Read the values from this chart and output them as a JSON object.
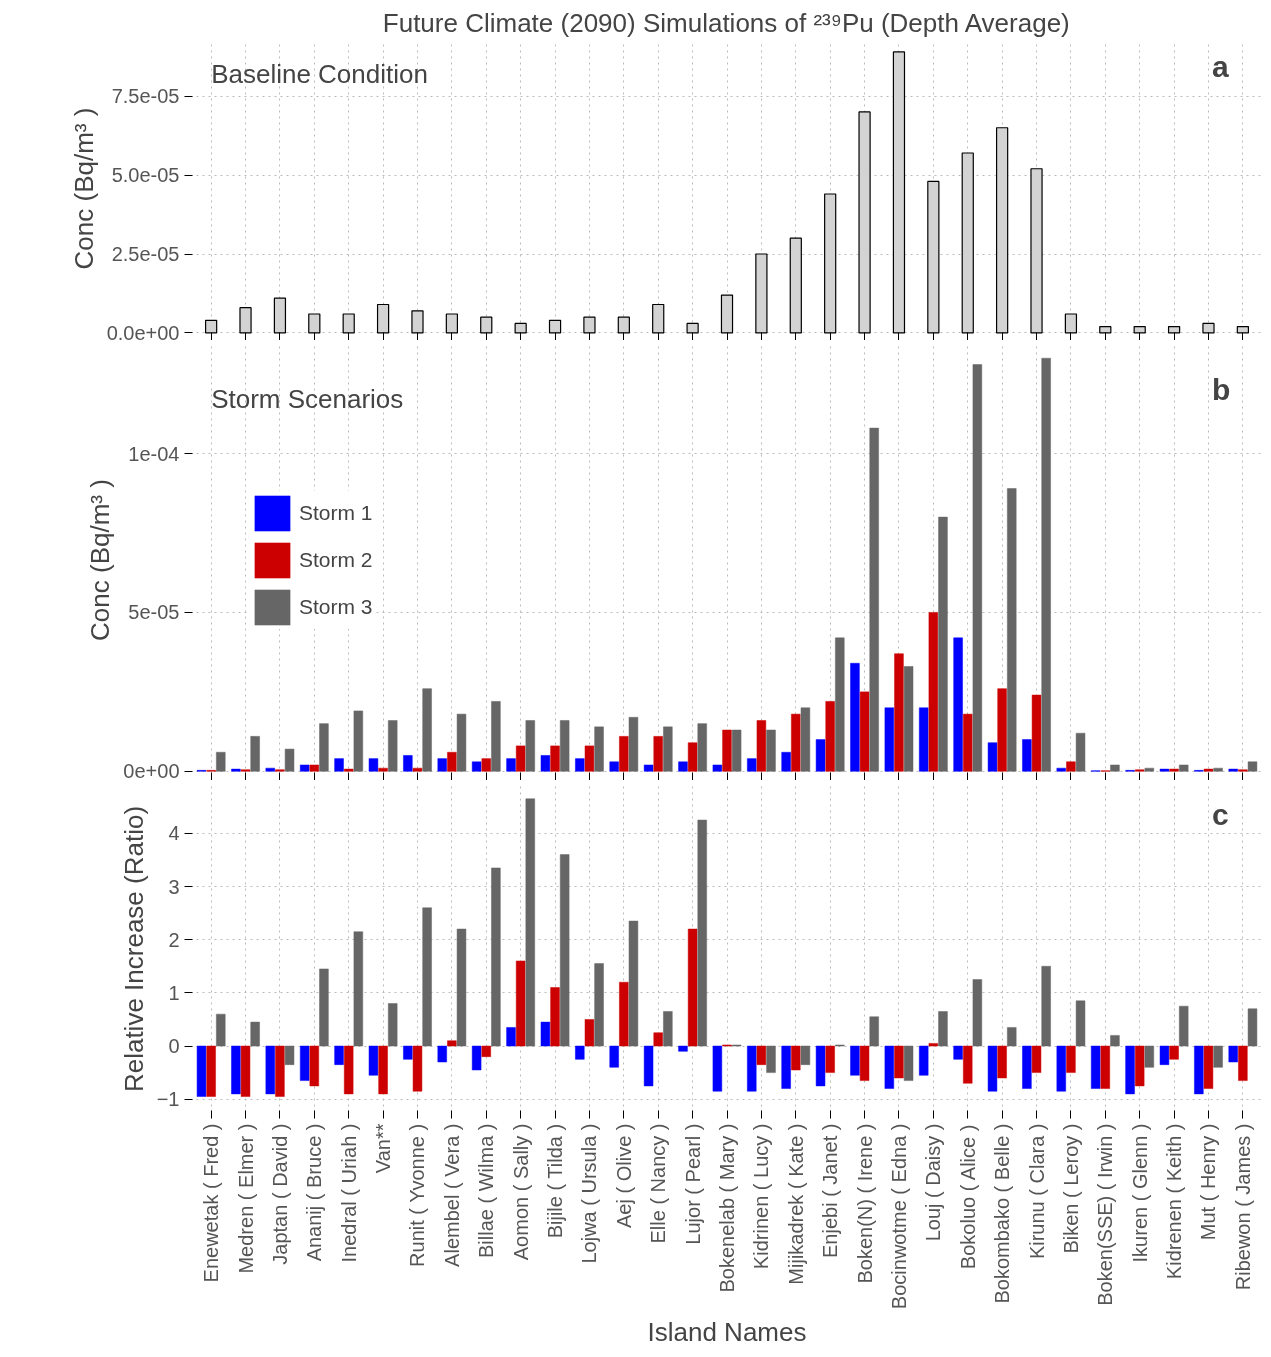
{
  "chart_data": [
    {
      "type": "bar",
      "title": "Future Climate (2090) Simulations of ²³⁹Pu (Depth Average)",
      "ylabel": "Conc (Bq/m³ )",
      "categories": [
        null,
        null,
        null,
        null,
        null,
        null,
        null,
        null,
        null,
        null,
        null,
        null,
        null,
        null,
        null,
        null,
        null,
        null,
        null,
        null,
        null,
        null,
        null,
        null,
        null,
        null,
        null,
        null,
        null,
        null,
        null
      ],
      "series": [
        {
          "color": "#d3d3d3",
          "values": [
            4e-06,
            8e-06,
            1.1e-05,
            6e-06,
            6e-06,
            9e-06,
            7e-06,
            6e-06,
            5e-06,
            3e-06,
            4e-06,
            5e-06,
            5e-06,
            9e-06,
            3e-06,
            1.2e-05,
            2.5e-05,
            3e-05,
            4.4e-05,
            7e-05,
            8.9e-05,
            4.8e-05,
            5.7e-05,
            6.5e-05,
            5.2e-05,
            6e-06,
            2e-06,
            2e-06,
            2e-06,
            3e-06,
            2e-06
          ]
        }
      ],
      "ylim": [
        -5e-07,
        9.2e-05
      ],
      "yticks": [
        {
          "value": 0,
          "label": "0.0e+00"
        },
        {
          "value": 2.5e-05,
          "label": "2.5e-05"
        },
        {
          "value": 5e-05,
          "label": "5.0e-05"
        },
        {
          "value": 7.5e-05,
          "label": "7.5e-05"
        }
      ],
      "grid": true,
      "tick_labels": "y",
      "annotations": [
        "Baseline Condition",
        "a"
      ]
    },
    {
      "type": "bar",
      "ylabel": "Conc (Bq/m³ )",
      "categories": [
        null,
        null,
        null,
        null,
        null,
        null,
        null,
        null,
        null,
        null,
        null,
        null,
        null,
        null,
        null,
        null,
        null,
        null,
        null,
        null,
        null,
        null,
        null,
        null,
        null,
        null,
        null,
        null,
        null,
        null,
        null
      ],
      "series": [
        {
          "name": "Storm 1",
          "color": "#0000ff",
          "values": [
            3e-07,
            7e-07,
            1e-06,
            2e-06,
            4e-06,
            4e-06,
            5e-06,
            4e-06,
            3e-06,
            4e-06,
            5e-06,
            4e-06,
            3e-06,
            2e-06,
            3e-06,
            2e-06,
            4e-06,
            6e-06,
            1e-05,
            3.4e-05,
            2e-05,
            2e-05,
            4.2e-05,
            9e-06,
            1e-05,
            1e-06,
            2e-07,
            3e-07,
            7e-07,
            3e-07,
            7e-07
          ]
        },
        {
          "name": "Storm 2",
          "color": "#cc0000",
          "values": [
            3e-07,
            5e-07,
            5e-07,
            2e-06,
            7e-07,
            1e-06,
            1e-06,
            6e-06,
            4e-06,
            8e-06,
            8e-06,
            8e-06,
            1.1e-05,
            1.1e-05,
            9e-06,
            1.3e-05,
            1.6e-05,
            1.8e-05,
            2.2e-05,
            2.5e-05,
            3.7e-05,
            5e-05,
            1.8e-05,
            2.6e-05,
            2.4e-05,
            3e-06,
            2e-07,
            5e-07,
            7e-07,
            7e-07,
            5e-07
          ]
        },
        {
          "name": "Storm 3",
          "color": "#666666",
          "values": [
            6e-06,
            1.1e-05,
            7e-06,
            1.5e-05,
            1.9e-05,
            1.6e-05,
            2.6e-05,
            1.8e-05,
            2.2e-05,
            1.6e-05,
            1.6e-05,
            1.4e-05,
            1.7e-05,
            1.4e-05,
            1.5e-05,
            1.3e-05,
            1.3e-05,
            2e-05,
            4.2e-05,
            0.000108,
            3.3e-05,
            8e-05,
            0.000128,
            8.9e-05,
            0.00013,
            1.2e-05,
            2e-06,
            1e-06,
            2e-06,
            1e-06,
            3e-06
          ]
        }
      ],
      "ylim": [
        -1e-06,
        0.000134
      ],
      "yticks": [
        {
          "value": 0,
          "label": "0e+00"
        },
        {
          "value": 5e-05,
          "label": "5e-05"
        },
        {
          "value": 0.0001,
          "label": "1e-04"
        }
      ],
      "grid": true,
      "legend": "left",
      "tick_labels": "y",
      "annotations": [
        "Storm Scenarios",
        "b"
      ]
    },
    {
      "type": "bar",
      "ylabel": "Relative Increase (Ratio)",
      "xlabel": "Island Names",
      "categories": [
        "Enewetak ( Fred )",
        "Medren ( Elmer )",
        "Japtan ( David )",
        "Ananij ( Bruce )",
        "Inedral ( Uriah )",
        "Van**",
        "Runit ( Yvonne )",
        "Alembel ( Vera )",
        "Billae ( Wilma )",
        "Aomon ( Sally )",
        "Bijile ( Tilda )",
        "Lojwa ( Ursula )",
        "Aej ( Olive )",
        "Elle ( Nancy )",
        "Lujor ( Pearl )",
        "Bokenelab ( Mary )",
        "Kidrinen ( Lucy )",
        "Mijikadrek ( Kate )",
        "Enjebi ( Janet )",
        "Boken(N) ( Irene )",
        "Bocinwotme ( Edna )",
        "Louj ( Daisy )",
        "Bokoluo ( Alice )",
        "Bokombako ( Belle )",
        "Kirunu ( Clara )",
        "Biken ( Leroy )",
        "Boken(SSE) ( Irwin )",
        "Ikuren ( Glenn )",
        "Kidrenen ( Keith )",
        "Mut ( Henry )",
        "Ribewon ( James )"
      ],
      "series": [
        {
          "color": "#0000ff",
          "values": [
            -0.95,
            -0.9,
            -0.9,
            -0.65,
            -0.35,
            -0.55,
            -0.25,
            -0.3,
            -0.45,
            0.35,
            0.45,
            -0.25,
            -0.4,
            -0.75,
            -0.1,
            -0.85,
            -0.85,
            -0.8,
            -0.75,
            -0.55,
            -0.8,
            -0.55,
            -0.25,
            -0.85,
            -0.8,
            -0.85,
            -0.8,
            -0.9,
            -0.35,
            -0.9,
            -0.3
          ]
        },
        {
          "color": "#cc0000",
          "values": [
            -0.95,
            -0.95,
            -0.95,
            -0.75,
            -0.9,
            -0.9,
            -0.85,
            0.1,
            -0.2,
            1.6,
            1.1,
            0.5,
            1.2,
            0.25,
            2.2,
            0.02,
            -0.35,
            -0.45,
            -0.5,
            -0.65,
            -0.6,
            0.05,
            -0.7,
            -0.6,
            -0.5,
            -0.5,
            -0.8,
            -0.75,
            -0.25,
            -0.8,
            -0.65
          ]
        },
        {
          "color": "#666666",
          "values": [
            0.6,
            0.45,
            -0.35,
            1.45,
            2.15,
            0.8,
            2.6,
            2.2,
            3.35,
            4.65,
            3.6,
            1.55,
            2.35,
            0.65,
            4.25,
            0.02,
            -0.5,
            -0.35,
            0.02,
            0.55,
            -0.65,
            0.65,
            1.25,
            0.35,
            1.5,
            0.85,
            0.2,
            -0.4,
            0.75,
            -0.4,
            0.7
          ]
        }
      ],
      "ylim": [
        -1.25,
        4.9
      ],
      "yticks": [
        -1,
        0,
        1,
        2,
        3,
        4
      ],
      "grid": true,
      "annotations": [
        "c"
      ]
    }
  ]
}
